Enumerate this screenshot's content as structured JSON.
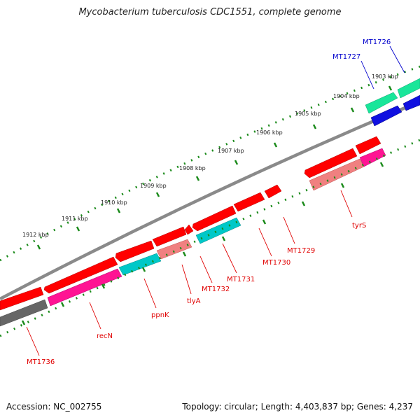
{
  "title": "Mycobacterium tuberculosis CDC1551, complete genome",
  "footer": {
    "accession": "Accession: NC_002755",
    "summary": "Topology: circular; Length: 4,403,837 bp; Genes: 4,237"
  },
  "colors": {
    "backbone": "#7a7a7a",
    "ticks": "#1a8a1a",
    "gene_red": "#ff0000",
    "gene_magenta": "#ff1493",
    "gene_cyan": "#00c8c8",
    "gene_salmon": "#f08080",
    "gene_green": "#19e69a",
    "gene_blue": "#1010e0",
    "gene_gray": "#666666",
    "label_red": "#e00000",
    "label_blue": "#0000cc"
  },
  "kbp_labels": [
    "1903 kbp",
    "1904 kbp",
    "1905 kbp",
    "1906 kbp",
    "1907 kbp",
    "1908 kbp",
    "1909 kbp",
    "1910 kbp",
    "1911 kbp",
    "1912 kbp"
  ],
  "gene_labels": [
    {
      "text": "MT1726",
      "color": "blue"
    },
    {
      "text": "MT1727",
      "color": "blue"
    },
    {
      "text": "tyrS",
      "color": "red"
    },
    {
      "text": "MT1729",
      "color": "red"
    },
    {
      "text": "MT1730",
      "color": "red"
    },
    {
      "text": "MT1731",
      "color": "red"
    },
    {
      "text": "MT1732",
      "color": "red"
    },
    {
      "text": "tlyA",
      "color": "red"
    },
    {
      "text": "ppnK",
      "color": "red"
    },
    {
      "text": "recN",
      "color": "red"
    },
    {
      "text": "MT1736",
      "color": "red"
    }
  ]
}
